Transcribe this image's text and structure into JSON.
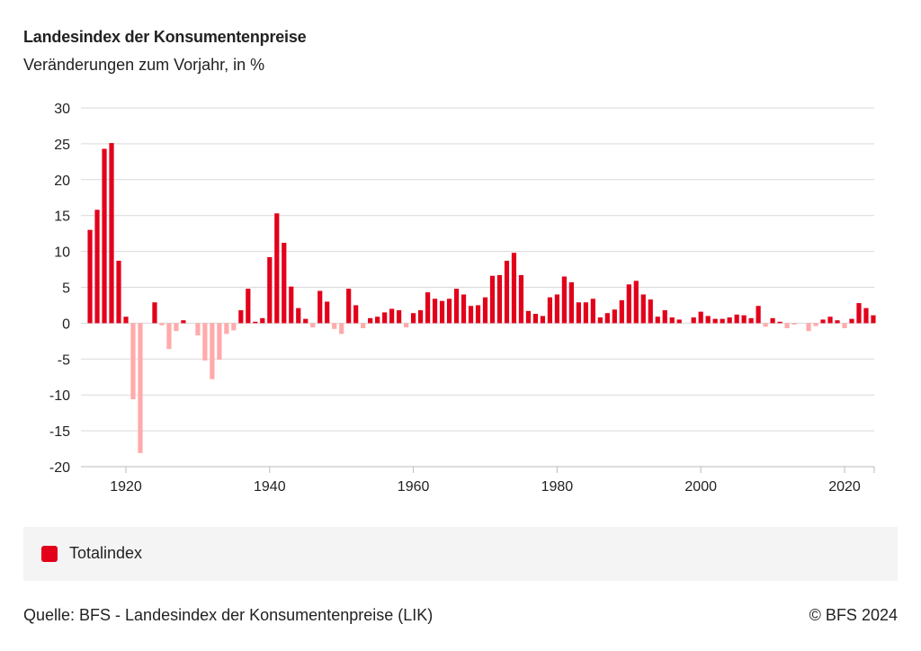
{
  "title": "Landesindex der Konsumentenpreise",
  "subtitle": "Veränderungen zum Vorjahr, in %",
  "legend": {
    "label": "Totalindex"
  },
  "source": "Quelle: BFS - Landesindex der Konsumentenpreise (LIK)",
  "copyright": "© BFS 2024",
  "colors": {
    "positive": "#e2001a",
    "negative": "#ffaaaa",
    "grid": "#d9d9d9",
    "legend_bg": "#f4f4f4"
  },
  "chart_data": {
    "type": "bar",
    "title": "Landesindex der Konsumentenpreise",
    "subtitle": "Veränderungen zum Vorjahr, in %",
    "ylim": [
      -20,
      30
    ],
    "yticks": [
      30,
      25,
      20,
      15,
      10,
      5,
      0,
      -5,
      -10,
      -15,
      -20
    ],
    "xticks": [
      1920,
      1940,
      1960,
      1980,
      2000,
      2020
    ],
    "xlim": [
      1914,
      2024
    ],
    "grid": true,
    "legend_position": "bottom",
    "series": [
      {
        "name": "Totalindex",
        "x": [
          1915,
          1916,
          1917,
          1918,
          1919,
          1920,
          1921,
          1922,
          1923,
          1924,
          1925,
          1926,
          1927,
          1928,
          1929,
          1930,
          1931,
          1932,
          1933,
          1934,
          1935,
          1936,
          1937,
          1938,
          1939,
          1940,
          1941,
          1942,
          1943,
          1944,
          1945,
          1946,
          1947,
          1948,
          1949,
          1950,
          1951,
          1952,
          1953,
          1954,
          1955,
          1956,
          1957,
          1958,
          1959,
          1960,
          1961,
          1962,
          1963,
          1964,
          1965,
          1966,
          1967,
          1968,
          1969,
          1970,
          1971,
          1972,
          1973,
          1974,
          1975,
          1976,
          1977,
          1978,
          1979,
          1980,
          1981,
          1982,
          1983,
          1984,
          1985,
          1986,
          1987,
          1988,
          1989,
          1990,
          1991,
          1992,
          1993,
          1994,
          1995,
          1996,
          1997,
          1998,
          1999,
          2000,
          2001,
          2002,
          2003,
          2004,
          2005,
          2006,
          2007,
          2008,
          2009,
          2010,
          2011,
          2012,
          2013,
          2014,
          2015,
          2016,
          2017,
          2018,
          2019,
          2020,
          2021,
          2022,
          2023,
          2024
        ],
        "values": [
          13.0,
          15.8,
          24.3,
          25.1,
          8.7,
          0.9,
          -10.6,
          -18.1,
          0.0,
          2.9,
          -0.3,
          -3.6,
          -1.1,
          0.4,
          0.0,
          -1.7,
          -5.2,
          -7.8,
          -5.1,
          -1.5,
          -1.0,
          1.8,
          4.8,
          0.2,
          0.7,
          9.2,
          15.3,
          11.2,
          5.1,
          2.1,
          0.6,
          -0.6,
          4.5,
          3.0,
          -0.8,
          -1.5,
          4.8,
          2.5,
          -0.7,
          0.7,
          0.9,
          1.5,
          2.0,
          1.8,
          -0.6,
          1.4,
          1.8,
          4.3,
          3.4,
          3.1,
          3.4,
          4.8,
          4.0,
          2.4,
          2.5,
          3.6,
          6.6,
          6.7,
          8.7,
          9.8,
          6.7,
          1.7,
          1.3,
          1.0,
          3.6,
          4.0,
          6.5,
          5.7,
          2.9,
          2.9,
          3.4,
          0.8,
          1.4,
          1.9,
          3.2,
          5.4,
          5.9,
          4.0,
          3.3,
          0.9,
          1.8,
          0.8,
          0.5,
          0.0,
          0.8,
          1.6,
          1.0,
          0.6,
          0.6,
          0.8,
          1.2,
          1.1,
          0.7,
          2.4,
          -0.5,
          0.7,
          0.2,
          -0.7,
          -0.2,
          0.0,
          -1.1,
          -0.4,
          0.5,
          0.9,
          0.4,
          -0.7,
          0.6,
          2.8,
          2.1,
          1.1
        ]
      }
    ]
  }
}
